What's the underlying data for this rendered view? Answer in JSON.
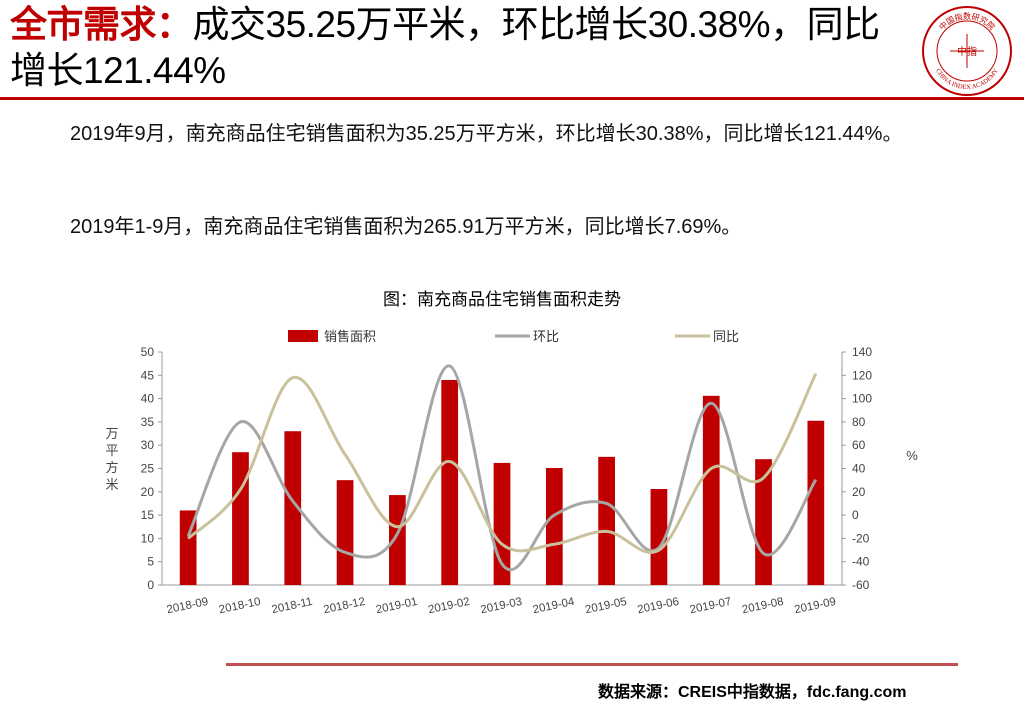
{
  "header": {
    "title_red": "全市需求：",
    "title_black": "成交35.25万平米，环比增长30.38%，同比增长121.44%"
  },
  "logo": {
    "text_top": "中国指数研究院",
    "text_bottom": "CHINA INDEX ACADEMY",
    "center_chars": "中指",
    "color": "#c00000"
  },
  "body": {
    "para1": "2019年9月，南充商品住宅销售面积为35.25万平方米，环比增长30.38%，同比增长121.44%。",
    "para2": "2019年1-9月，南充商品住宅销售面积为265.91万平方米，同比增长7.69%。"
  },
  "chart_data": {
    "type": "bar",
    "title": "图：南充商品住宅销售面积走势",
    "categories": [
      "2018-09",
      "2018-10",
      "2018-11",
      "2018-12",
      "2019-01",
      "2019-02",
      "2019-03",
      "2019-04",
      "2019-05",
      "2019-06",
      "2019-07",
      "2019-08",
      "2019-09"
    ],
    "series": [
      {
        "name": "销售面积",
        "kind": "bar",
        "axis": "left",
        "color": "#c00000",
        "values": [
          16,
          28.5,
          33,
          22.5,
          19.3,
          44,
          26.2,
          25.1,
          27.5,
          20.6,
          40.6,
          27,
          35.25
        ]
      },
      {
        "name": "环比",
        "kind": "line",
        "axis": "right",
        "color": "#a6a6a6",
        "values": [
          -18,
          80,
          12,
          -32,
          -16,
          128,
          -42,
          0,
          10,
          -28,
          96,
          -33,
          30.38
        ]
      },
      {
        "name": "同比",
        "kind": "line",
        "axis": "right",
        "color": "#c9c19b",
        "values": [
          -20,
          22,
          118,
          52,
          -10,
          46,
          -25,
          -25,
          -14,
          -30,
          40,
          32,
          121.44
        ]
      }
    ],
    "left_axis": {
      "label": "万平方米",
      "ylim": [
        0,
        50
      ],
      "ticks": [
        0,
        5,
        10,
        15,
        20,
        25,
        30,
        35,
        40,
        45,
        50
      ]
    },
    "right_axis": {
      "label": "%",
      "ylim": [
        -60,
        140
      ],
      "ticks": [
        -60,
        -40,
        -20,
        0,
        20,
        40,
        60,
        80,
        100,
        120,
        140
      ]
    },
    "legend_position": "top",
    "grid": false
  },
  "footer": {
    "source": "数据来源：CREIS中指数据，fdc.fang.com"
  }
}
